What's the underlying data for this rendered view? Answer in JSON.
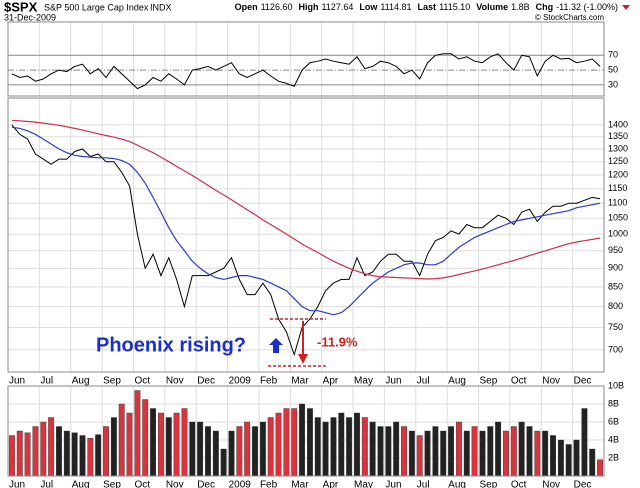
{
  "header": {
    "symbol": "$SPX",
    "name": "S&P 500 Large Cap Index",
    "exchange": "INDX",
    "date": "31-Dec-2009",
    "credit": "© StockCharts.com",
    "quote": [
      {
        "label": "Open",
        "value": "1126.60"
      },
      {
        "label": "High",
        "value": "1127.64"
      },
      {
        "label": "Low",
        "value": "1114.81"
      },
      {
        "label": "Last",
        "value": "1115.10"
      },
      {
        "label": "Volume",
        "value": "1.8B"
      },
      {
        "label": "Chg",
        "value": "-11.32 (-1.00%)"
      }
    ]
  },
  "chart_data": [
    {
      "type": "line",
      "ylim": [
        15,
        115
      ],
      "yticks": [
        70,
        50,
        30
      ],
      "grid": true,
      "series": [
        {
          "color": "#000000",
          "values": [
            45,
            40,
            42,
            35,
            38,
            45,
            50,
            48,
            55,
            58,
            45,
            52,
            40,
            55,
            45,
            35,
            25,
            30,
            40,
            35,
            45,
            38,
            30,
            50,
            52,
            55,
            50,
            55,
            60,
            45,
            40,
            45,
            50,
            42,
            35,
            32,
            28,
            50,
            60,
            62,
            65,
            62,
            60,
            58,
            68,
            52,
            55,
            62,
            60,
            55,
            45,
            50,
            38,
            60,
            70,
            72,
            72,
            65,
            68,
            62,
            60,
            68,
            72,
            60,
            50,
            70,
            68,
            42,
            62,
            70,
            65,
            66,
            60,
            62,
            65,
            55
          ]
        }
      ]
    },
    {
      "type": "line",
      "log": true,
      "ylim": [
        654,
        1521
      ],
      "yticks": [
        1400,
        1350,
        1300,
        1250,
        1200,
        1150,
        1100,
        1050,
        1000,
        950,
        900,
        850,
        800,
        750,
        700
      ],
      "grid": true,
      "categories": [
        "Jun",
        null,
        null,
        null,
        "Jul",
        null,
        null,
        null,
        "Aug",
        null,
        null,
        null,
        "Sep",
        null,
        null,
        null,
        "Oct",
        null,
        null,
        null,
        "Nov",
        null,
        null,
        null,
        "Dec",
        null,
        null,
        null,
        "2009",
        null,
        null,
        null,
        "Feb",
        null,
        null,
        null,
        "Mar",
        null,
        null,
        null,
        "Apr",
        null,
        null,
        null,
        "May",
        null,
        null,
        null,
        "Jun",
        null,
        null,
        null,
        "Jul",
        null,
        null,
        null,
        "Aug",
        null,
        null,
        null,
        "Sep",
        null,
        null,
        null,
        "Oct",
        null,
        null,
        null,
        "Nov",
        null,
        null,
        null,
        "Dec",
        null,
        null,
        null
      ],
      "series": [
        {
          "color": "#000000",
          "values": [
            1400,
            1360,
            1340,
            1280,
            1260,
            1240,
            1260,
            1260,
            1290,
            1300,
            1270,
            1280,
            1250,
            1250,
            1210,
            1160,
            1000,
            900,
            940,
            880,
            930,
            870,
            800,
            880,
            880,
            880,
            890,
            900,
            930,
            870,
            830,
            830,
            860,
            830,
            770,
            740,
            690,
            750,
            770,
            800,
            840,
            860,
            870,
            870,
            930,
            880,
            890,
            920,
            940,
            940,
            920,
            920,
            880,
            940,
            980,
            990,
            1010,
            1000,
            1030,
            1020,
            1020,
            1040,
            1060,
            1050,
            1030,
            1070,
            1080,
            1040,
            1070,
            1090,
            1090,
            1100,
            1100,
            1110,
            1120,
            1115
          ]
        },
        {
          "color": "#2b3cc4",
          "values": [
            1390,
            1385,
            1375,
            1360,
            1340,
            1320,
            1300,
            1285,
            1275,
            1270,
            1268,
            1265,
            1265,
            1262,
            1255,
            1240,
            1210,
            1170,
            1120,
            1070,
            1020,
            980,
            950,
            920,
            900,
            885,
            875,
            870,
            875,
            880,
            880,
            875,
            870,
            860,
            850,
            840,
            820,
            800,
            790,
            790,
            785,
            780,
            785,
            800,
            820,
            840,
            860,
            875,
            890,
            900,
            910,
            915,
            915,
            910,
            910,
            920,
            940,
            960,
            975,
            990,
            1000,
            1010,
            1020,
            1030,
            1040,
            1045,
            1050,
            1055,
            1060,
            1065,
            1070,
            1075,
            1085,
            1090,
            1095,
            1100
          ]
        },
        {
          "color": "#c8304a",
          "values": [
            1420,
            1418,
            1415,
            1412,
            1408,
            1403,
            1398,
            1392,
            1385,
            1378,
            1370,
            1362,
            1355,
            1348,
            1340,
            1330,
            1315,
            1300,
            1285,
            1268,
            1250,
            1232,
            1215,
            1198,
            1180,
            1162,
            1145,
            1128,
            1112,
            1095,
            1078,
            1062,
            1045,
            1030,
            1015,
            1000,
            985,
            970,
            957,
            945,
            932,
            920,
            910,
            900,
            892,
            885,
            880,
            877,
            876,
            875,
            874,
            873,
            872,
            871,
            872,
            874,
            878,
            883,
            888,
            893,
            898,
            904,
            910,
            916,
            922,
            929,
            936,
            943,
            950,
            957,
            964,
            971,
            976,
            980,
            984,
            988
          ]
        }
      ],
      "annotations": [
        "Phoenix rising?",
        "-11.9%"
      ]
    },
    {
      "type": "bar",
      "ylim": [
        0,
        10000000000
      ],
      "grid": true,
      "color": "#d8343e",
      "up_color": "#222222",
      "yticks": [
        {
          "value": 10000000000,
          "label": "10B"
        },
        {
          "value": 8000000000,
          "label": "8B"
        },
        {
          "value": 6000000000,
          "label": "6B"
        },
        {
          "value": 4000000000,
          "label": "4B"
        },
        {
          "value": 2000000000,
          "label": "2B"
        }
      ],
      "categories": [
        "Jun",
        null,
        null,
        null,
        "Jul",
        null,
        null,
        null,
        "Aug",
        null,
        null,
        null,
        "Sep",
        null,
        null,
        null,
        "Oct",
        null,
        null,
        null,
        "Nov",
        null,
        null,
        null,
        "Dec",
        null,
        null,
        null,
        "2009",
        null,
        null,
        null,
        "Feb",
        null,
        null,
        null,
        "Mar",
        null,
        null,
        null,
        "Apr",
        null,
        null,
        null,
        "May",
        null,
        null,
        null,
        "Jun",
        null,
        null,
        null,
        "Jul",
        null,
        null,
        null,
        "Aug",
        null,
        null,
        null,
        "Sep",
        null,
        null,
        null,
        "Oct",
        null,
        null,
        null,
        "Nov",
        null,
        null,
        null,
        "Dec",
        null,
        null,
        null
      ],
      "values": [
        4500000000,
        5000000000,
        4800000000,
        5500000000,
        6000000000,
        6500000000,
        5500000000,
        5000000000,
        4800000000,
        4500000000,
        4200000000,
        4600000000,
        5500000000,
        6500000000,
        8000000000,
        7000000000,
        9500000000,
        8500000000,
        7500000000,
        7000000000,
        6500000000,
        7000000000,
        7500000000,
        6000000000,
        6000000000,
        5500000000,
        5000000000,
        3000000000,
        5000000000,
        5500000000,
        6000000000,
        5500000000,
        6000000000,
        6500000000,
        7000000000,
        7500000000,
        7500000000,
        8000000000,
        7500000000,
        6500000000,
        6000000000,
        6500000000,
        7000000000,
        6500000000,
        7000000000,
        6500000000,
        6000000000,
        5500000000,
        5500000000,
        6000000000,
        5500000000,
        5000000000,
        4500000000,
        5000000000,
        5500000000,
        5000000000,
        5500000000,
        6000000000,
        5000000000,
        5500000000,
        5000000000,
        5500000000,
        6000000000,
        5000000000,
        5500000000,
        6000000000,
        5500000000,
        5000000000,
        5000000000,
        4500000000,
        4000000000,
        3500000000,
        4000000000,
        7500000000,
        3000000000,
        1800000000
      ]
    }
  ]
}
